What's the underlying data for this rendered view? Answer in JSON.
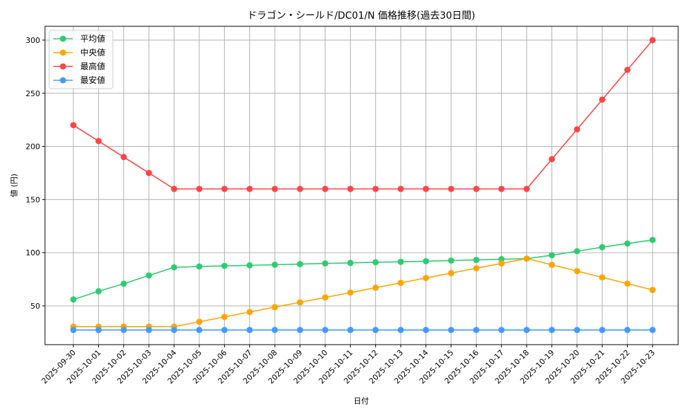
{
  "chart_data": {
    "type": "line",
    "title": "ドラゴン・シールド/DC01/N 価格推移(過去30日間)",
    "xlabel": "日付",
    "ylabel": "値 (円)",
    "categories": [
      "2025-09-30",
      "2025-10-01",
      "2025-10-02",
      "2025-10-03",
      "2025-10-04",
      "2025-10-05",
      "2025-10-06",
      "2025-10-07",
      "2025-10-08",
      "2025-10-09",
      "2025-10-10",
      "2025-10-11",
      "2025-10-12",
      "2025-10-13",
      "2025-10-14",
      "2025-10-15",
      "2025-10-16",
      "2025-10-17",
      "2025-10-18",
      "2025-10-19",
      "2025-10-20",
      "2025-10-21",
      "2025-10-22",
      "2025-10-23"
    ],
    "ylim": [
      13.5,
      313
    ],
    "yticks": [
      50,
      100,
      150,
      200,
      250,
      300
    ],
    "grid": true,
    "legend_position": "top-left",
    "series": [
      {
        "name": "平均値",
        "color": "#2ecc71",
        "values": [
          56,
          63.7,
          70.8,
          78.6,
          86.2,
          87,
          87.6,
          88.1,
          88.7,
          89.3,
          89.9,
          90.4,
          91,
          91.4,
          92,
          92.6,
          93.2,
          93.9,
          94.4,
          97.6,
          101.4,
          105.2,
          108.6,
          112
        ]
      },
      {
        "name": "中央値",
        "color": "#ffa500",
        "values": [
          30.5,
          30.5,
          30.5,
          30.5,
          30.5,
          35,
          39.6,
          44.2,
          48.8,
          53.3,
          57.9,
          62.5,
          67.1,
          71.6,
          76.2,
          80.8,
          85.4,
          89.9,
          94.5,
          88.6,
          82.7,
          76.8,
          70.9,
          65
        ]
      },
      {
        "name": "最高値",
        "color": "#ff4444",
        "values": [
          220,
          205,
          190,
          175,
          160,
          160,
          160,
          160,
          160,
          160,
          160,
          160,
          160,
          160,
          160,
          160,
          160,
          160,
          160,
          188,
          216,
          244,
          272,
          300
        ]
      },
      {
        "name": "最安値",
        "color": "#4499ff",
        "values": [
          27.3,
          27.3,
          27.3,
          27.3,
          27.3,
          27.3,
          27.3,
          27.3,
          27.3,
          27.3,
          27.3,
          27.3,
          27.3,
          27.3,
          27.3,
          27.3,
          27.3,
          27.3,
          27.3,
          27.3,
          27.3,
          27.3,
          27.3,
          27.3
        ]
      }
    ]
  }
}
